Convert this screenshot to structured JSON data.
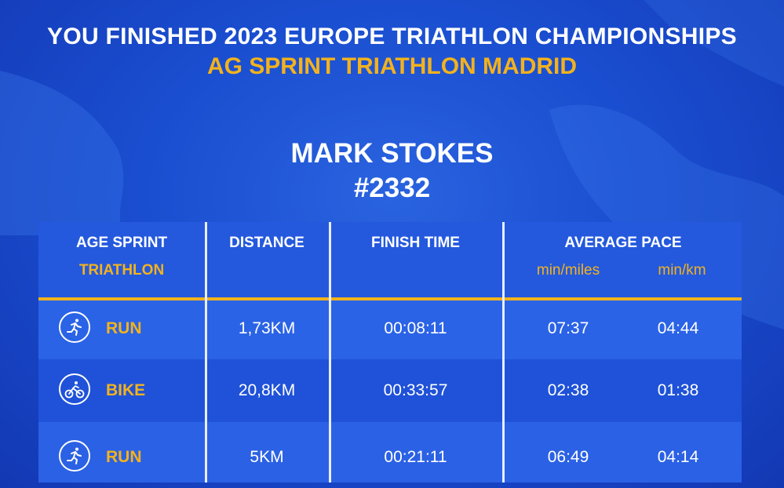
{
  "header": {
    "line1": "YOU FINISHED 2023 EUROPE TRIATHLON CHAMPIONSHIPS",
    "line2": "AG SPRINT TRIATHLON MADRID"
  },
  "athlete": {
    "name": "MARK STOKES",
    "bib": "#2332"
  },
  "table": {
    "col_category": "AGE SPRINT",
    "col_category_sub": "TRIATHLON",
    "col_distance": "DISTANCE",
    "col_finish": "FINISH TIME",
    "col_pace": "AVERAGE PACE",
    "unit_miles": "min/miles",
    "unit_km": "min/km",
    "rows": [
      {
        "icon": "running-icon",
        "discipline": "RUN",
        "distance": "1,73KM",
        "finish": "00:08:11",
        "pace_miles": "07:37",
        "pace_km": "04:44"
      },
      {
        "icon": "cycling-icon",
        "discipline": "BIKE",
        "distance": "20,8KM",
        "finish": "00:33:57",
        "pace_miles": "02:38",
        "pace_km": "01:38"
      },
      {
        "icon": "running-icon",
        "discipline": "RUN",
        "distance": "5KM",
        "finish": "00:21:11",
        "pace_miles": "06:49",
        "pace_km": "04:14"
      }
    ]
  },
  "colors": {
    "background": "#1a4ed0",
    "accent": "#f3b21d",
    "text": "#ffffff"
  }
}
